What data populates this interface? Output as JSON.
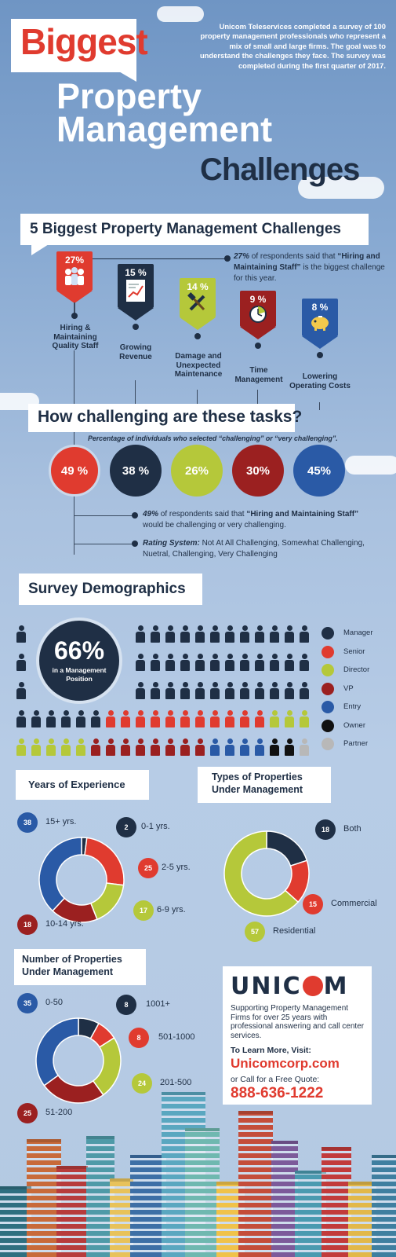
{
  "header": {
    "biggest": "Biggest",
    "intro": "Unicom Teleservices completed a survey of 100 property management professionals who represent a mix of small and large firms. The goal was to understand the challenges they face. The survey was completed during the first quarter of 2017.",
    "title_line1": "Property",
    "title_line2": "Management",
    "title_line3": "Challenges"
  },
  "challenges": {
    "heading": "5 Biggest Property Management Challenges",
    "callout_pct": "27%",
    "callout_text": " of respondents said that ",
    "callout_bold": "“Hiring and Maintaining Staff”",
    "callout_rest": " is the biggest challenge for this year.",
    "items": [
      {
        "pct": "27%",
        "label": "Hiring & Maintaining Quality Staff",
        "color": "#e03b2f",
        "icon": "people-icon"
      },
      {
        "pct": "15 %",
        "label": "Growing Revenue",
        "color": "#1f2f45",
        "icon": "chart-icon"
      },
      {
        "pct": "14 %",
        "label": "Damage and Unexpected Maintenance",
        "color": "#b5c83a",
        "icon": "tools-icon"
      },
      {
        "pct": "9 %",
        "label": "Time Management",
        "color": "#9b2020",
        "icon": "clock-icon"
      },
      {
        "pct": "8 %",
        "label": "Lowering Operating Costs",
        "color": "#2a5aa6",
        "icon": "piggy-bank-icon"
      }
    ]
  },
  "tasks": {
    "heading": "How challenging are these tasks?",
    "subheading": "Percentage of individuals who selected “challenging” or “very challenging”.",
    "circles": [
      {
        "value": "49 %",
        "color": "#e03b2f"
      },
      {
        "value": "38 %",
        "color": "#1f2f45"
      },
      {
        "value": "26%",
        "color": "#b5c83a"
      },
      {
        "value": "30%",
        "color": "#9b2020"
      },
      {
        "value": "45%",
        "color": "#2a5aa6"
      }
    ],
    "note1_pct": "49%",
    "note1_text": " of respondents said that ",
    "note1_bold": "“Hiring and Maintaining Staff”",
    "note1_rest": " would be challenging or very challenging.",
    "note2_label": "Rating System:",
    "note2_text": " Not At All Challenging, Somewhat Challenging, Nuetral, Challenging, Very Challenging"
  },
  "demographics": {
    "heading": "Survey Demographics",
    "big_pct": "66%",
    "big_caption": "in a Management Position",
    "legend": [
      {
        "label": "Manager",
        "color": "#1f2f45"
      },
      {
        "label": "Senior",
        "color": "#e03b2f"
      },
      {
        "label": "Director",
        "color": "#b5c83a"
      },
      {
        "label": "VP",
        "color": "#9b2020"
      },
      {
        "label": "Entry",
        "color": "#2a5aa6"
      },
      {
        "label": "Owner",
        "color": "#111111"
      },
      {
        "label": "Partner",
        "color": "#b8b8b8"
      }
    ]
  },
  "experience": {
    "heading": "Years of Experience",
    "segments": [
      {
        "value": "2",
        "label": "0-1 yrs.",
        "color": "#1f2f45"
      },
      {
        "value": "25",
        "label": "2-5 yrs.",
        "color": "#e03b2f"
      },
      {
        "value": "17",
        "label": "6-9 yrs.",
        "color": "#b5c83a"
      },
      {
        "value": "18",
        "label": "10-14 yrs.",
        "color": "#9b2020"
      },
      {
        "value": "38",
        "label": "15+ yrs.",
        "color": "#2a5aa6"
      }
    ]
  },
  "property_types": {
    "heading_line1": "Types of Properties",
    "heading_line2": "Under Management",
    "segments": [
      {
        "value": "18",
        "label": "Both",
        "color": "#1f2f45"
      },
      {
        "value": "15",
        "label": "Commercial",
        "color": "#e03b2f"
      },
      {
        "value": "57",
        "label": "Residential",
        "color": "#b5c83a"
      }
    ]
  },
  "property_count": {
    "heading_line1": "Number of Properties",
    "heading_line2": "Under Management",
    "segments": [
      {
        "value": "8",
        "label": "1001+",
        "color": "#1f2f45"
      },
      {
        "value": "8",
        "label": "501-1000",
        "color": "#e03b2f"
      },
      {
        "value": "24",
        "label": "201-500",
        "color": "#b5c83a"
      },
      {
        "value": "25",
        "label": "51-200",
        "color": "#9b2020"
      },
      {
        "value": "35",
        "label": "0-50",
        "color": "#2a5aa6"
      }
    ]
  },
  "ad": {
    "logo": "UNIC",
    "logo_end": "M",
    "tagline": "Supporting Property Management Firms for over 25 years with professional answering and call center services.",
    "learn_more": "To Learn More, Visit:",
    "url": "Unicomcorp.com",
    "quote": "or Call for a Free Quote:",
    "phone": "888-636-1222"
  }
}
